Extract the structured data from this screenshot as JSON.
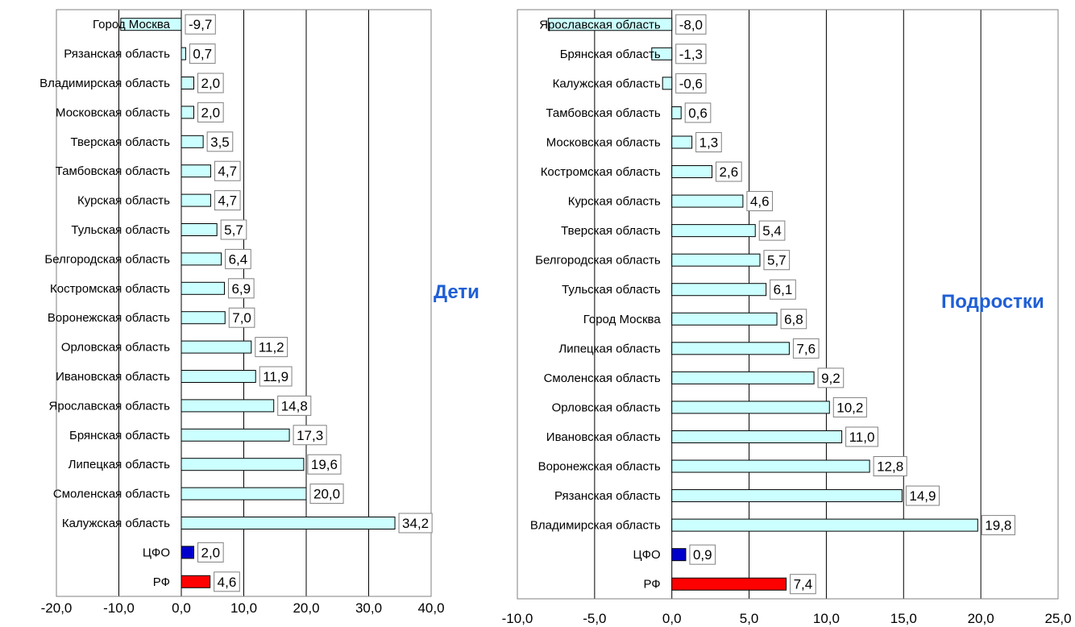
{
  "colors": {
    "bar_region": "#ccffff",
    "bar_cfo": "#0000cc",
    "bar_rf": "#ff0000",
    "title_text": "#1f5fd6"
  },
  "chart_data": [
    {
      "type": "bar",
      "orientation": "horizontal",
      "title": "Дети",
      "xlim": [
        -20,
        40
      ],
      "xticks": [
        -20,
        -10,
        0,
        10,
        20,
        30,
        40
      ],
      "xtick_labels": [
        "-20,0",
        "-10,0",
        "0,0",
        "10,0",
        "20,0",
        "30,0",
        "40,0"
      ],
      "grid": "vertical",
      "categories": [
        "Город Москва",
        "Рязанская область",
        "Владимирская область",
        "Московская область",
        "Тверская область",
        "Тамбовская область",
        "Курская область",
        "Тульская область",
        "Белгородская область",
        "Костромская область",
        "Воронежская область",
        "Орловская область",
        "Ивановская область",
        "Ярославская область",
        "Брянская область",
        "Липецкая область",
        "Смоленская область",
        "Калужская область",
        "ЦФО",
        "РФ"
      ],
      "values": [
        -9.7,
        0.7,
        2.0,
        2.0,
        3.5,
        4.7,
        4.7,
        5.7,
        6.4,
        6.9,
        7.0,
        11.2,
        11.9,
        14.8,
        17.3,
        19.6,
        20.0,
        34.2,
        2.0,
        4.6
      ],
      "value_labels": [
        "-9,7",
        "0,7",
        "2,0",
        "2,0",
        "3,5",
        "4,7",
        "4,7",
        "5,7",
        "6,4",
        "6,9",
        "7,0",
        "11,2",
        "11,9",
        "14,8",
        "17,3",
        "19,6",
        "20,0",
        "34,2",
        "2,0",
        "4,6"
      ],
      "bar_colors": [
        "region",
        "region",
        "region",
        "region",
        "region",
        "region",
        "region",
        "region",
        "region",
        "region",
        "region",
        "region",
        "region",
        "region",
        "region",
        "region",
        "region",
        "region",
        "cfo",
        "rf"
      ]
    },
    {
      "type": "bar",
      "orientation": "horizontal",
      "title": "Подростки",
      "xlim": [
        -10,
        25
      ],
      "xticks": [
        -10,
        -5,
        0,
        5,
        10,
        15,
        20,
        25
      ],
      "xtick_labels": [
        "-10,0",
        "-5,0",
        "0,0",
        "5,0",
        "10,0",
        "15,0",
        "20,0",
        "25,0"
      ],
      "grid": "vertical",
      "categories": [
        "Ярославская область",
        "Брянская область",
        "Калужская область",
        "Тамбовская область",
        "Московская область",
        "Костромская область",
        "Курская область",
        "Тверская область",
        "Белгородская область",
        "Тульская область",
        "Город Москва",
        "Липецкая область",
        "Смоленская область",
        "Орловская область",
        "Ивановская область",
        "Воронежская область",
        "Рязанская область",
        "Владимирская область",
        "ЦФО",
        "РФ"
      ],
      "values": [
        -8.0,
        -1.3,
        -0.6,
        0.6,
        1.3,
        2.6,
        4.6,
        5.4,
        5.7,
        6.1,
        6.8,
        7.6,
        9.2,
        10.2,
        11.0,
        12.8,
        14.9,
        19.8,
        0.9,
        7.4
      ],
      "value_labels": [
        "-8,0",
        "-1,3",
        "-0,6",
        "0,6",
        "1,3",
        "2,6",
        "4,6",
        "5,4",
        "5,7",
        "6,1",
        "6,8",
        "7,6",
        "9,2",
        "10,2",
        "11,0",
        "12,8",
        "14,9",
        "19,8",
        "0,9",
        "7,4"
      ],
      "bar_colors": [
        "region",
        "region",
        "region",
        "region",
        "region",
        "region",
        "region",
        "region",
        "region",
        "region",
        "region",
        "region",
        "region",
        "region",
        "region",
        "region",
        "region",
        "region",
        "cfo",
        "rf"
      ]
    }
  ]
}
